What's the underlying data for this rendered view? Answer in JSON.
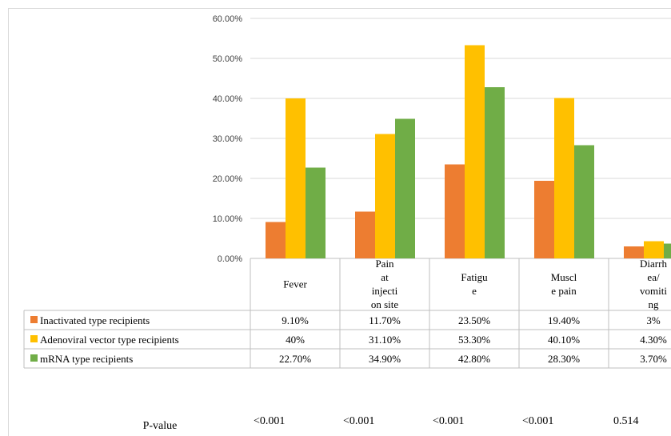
{
  "colors": {
    "inactivated": "#ED7D31",
    "adenoviral": "#FFC000",
    "mrna": "#70AD47",
    "grid": "#d9d9d9"
  },
  "chart_data": {
    "type": "bar",
    "categories": [
      [
        "Fever"
      ],
      [
        "Pain",
        "at",
        "injecti",
        "on site"
      ],
      [
        "Fatigu",
        "e"
      ],
      [
        "Muscl",
        "e pain"
      ],
      [
        "Diarrh",
        "ea/",
        "vomiti",
        "ng"
      ]
    ],
    "series": [
      {
        "name": "Inactivated type recipients",
        "values": [
          9.1,
          11.7,
          23.5,
          19.4,
          3.0
        ],
        "labels": [
          "9.10%",
          "11.70%",
          "23.50%",
          "19.40%",
          "3%"
        ]
      },
      {
        "name": "Adenoviral vector type recipients",
        "values": [
          40.0,
          31.1,
          53.3,
          40.1,
          4.3
        ],
        "labels": [
          "40%",
          "31.10%",
          "53.30%",
          "40.10%",
          "4.30%"
        ]
      },
      {
        "name": "mRNA type recipients",
        "values": [
          22.7,
          34.9,
          42.8,
          28.3,
          3.7
        ],
        "labels": [
          "22.70%",
          "34.90%",
          "42.80%",
          "28.30%",
          "3.70%"
        ]
      }
    ],
    "ylim": [
      0,
      60
    ],
    "yticks": [
      "0.00%",
      "10.00%",
      "20.00%",
      "30.00%",
      "40.00%",
      "50.00%",
      "60.00%"
    ],
    "grid": true,
    "legend": "data-table-left",
    "pvalue_label": "P-value",
    "pvalues": [
      "<0.001",
      "<0.001",
      "<0.001",
      "<0.001",
      "0.514"
    ]
  }
}
